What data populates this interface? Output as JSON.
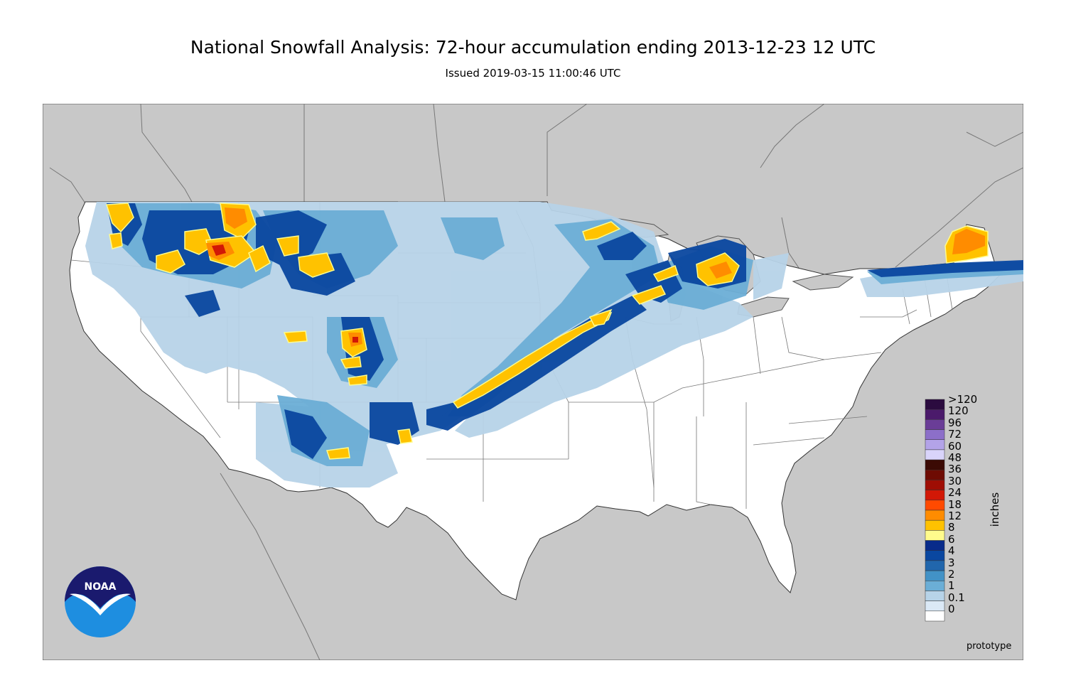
{
  "title": "National Snowfall Analysis: 72-hour accumulation ending 2013-12-23 12 UTC",
  "subtitle": "Issued 2019-03-15 11:00:46 UTC",
  "footer_note": "prototype",
  "logo_text": "NOAA",
  "legend": {
    "unit": "inches",
    "bins": [
      {
        "label": ">120",
        "color": "#2b0b3f"
      },
      {
        "label": "120",
        "color": "#4b1a6b"
      },
      {
        "label": "96",
        "color": "#6a3d97"
      },
      {
        "label": "72",
        "color": "#8c6fc9"
      },
      {
        "label": "60",
        "color": "#b3a3e8"
      },
      {
        "label": "48",
        "color": "#d9d4fa"
      },
      {
        "label": "36",
        "color": "#3b0a04"
      },
      {
        "label": "30",
        "color": "#6e0b03"
      },
      {
        "label": "24",
        "color": "#9f0d04"
      },
      {
        "label": "18",
        "color": "#d21806"
      },
      {
        "label": "12",
        "color": "#ff4a00"
      },
      {
        "label": "8",
        "color": "#ff8c00"
      },
      {
        "label": "6",
        "color": "#ffc200"
      },
      {
        "label": "4",
        "color": "#fffb8c"
      },
      {
        "label": "3",
        "color": "#082b8a"
      },
      {
        "label": "2",
        "color": "#0a47a0"
      },
      {
        "label": "1",
        "color": "#2166ac"
      },
      {
        "label": "0.1",
        "color": "#4292c6"
      },
      {
        "label": "0",
        "color": "#6baed6"
      }
    ],
    "extra_colors": [
      "#b7d3e8",
      "#dbe9f6",
      "#ffffff"
    ]
  },
  "colors": {
    "land_outside": "#c8c8c8",
    "conus": "#ffffff",
    "light_snow": "#b7d3e8",
    "moderate_snow": "#6baed6",
    "heavy_snow": "#0a47a0",
    "very_heavy_snow": "#ffc200",
    "extreme_snow": "#ff8c00",
    "noaa_dark": "#1a1a6e",
    "noaa_light": "#1e8ee0"
  }
}
